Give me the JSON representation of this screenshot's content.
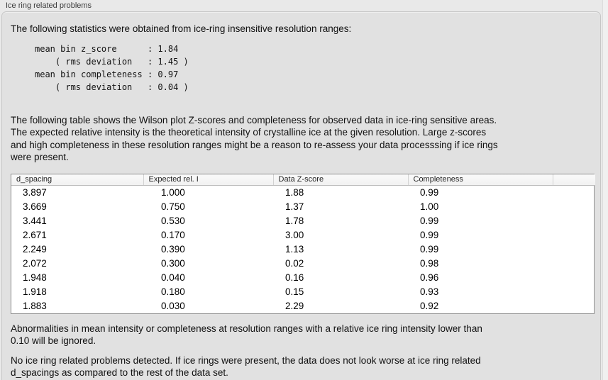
{
  "panel": {
    "title": "Ice ring related problems"
  },
  "intro": "The following statistics were obtained from ice-ring insensitive resolution ranges:",
  "stats_text": "mean bin z_score      : 1.84\n    ( rms deviation   : 1.45 )\nmean bin completeness : 0.97\n    ( rms deviation   : 0.04 )",
  "stats": {
    "mean_bin_z_score": 1.84,
    "z_score_rms_deviation": 1.45,
    "mean_bin_completeness": 0.97,
    "completeness_rms_deviation": 0.04
  },
  "table_description": "The following table shows the Wilson plot Z-scores and completeness for observed data in ice-ring sensitive areas.\nThe expected relative intensity is the theoretical intensity of crystalline ice at the given resolution. Large z-scores\nand high completeness in these resolution ranges might be a reason to re-assess your data processsing if ice rings\nwere present.",
  "table": {
    "columns": [
      "d_spacing",
      "Expected rel. I",
      "Data Z-score",
      "Completeness",
      ""
    ],
    "rows": [
      [
        "3.897",
        "1.000",
        "1.88",
        "0.99"
      ],
      [
        "3.669",
        "0.750",
        "1.37",
        "1.00"
      ],
      [
        "3.441",
        "0.530",
        "1.78",
        "0.99"
      ],
      [
        "2.671",
        "0.170",
        "3.00",
        "0.99"
      ],
      [
        "2.249",
        "0.390",
        "1.13",
        "0.99"
      ],
      [
        "2.072",
        "0.300",
        "0.02",
        "0.98"
      ],
      [
        "1.948",
        "0.040",
        "0.16",
        "0.96"
      ],
      [
        "1.918",
        "0.180",
        "0.15",
        "0.93"
      ],
      [
        "1.883",
        "0.030",
        "2.29",
        "0.92"
      ]
    ]
  },
  "notes": {
    "ignore_note": "Abnormalities in mean intensity or completeness at resolution ranges with a relative ice ring intensity lower than\n0.10 will be ignored.",
    "conclusion": "No ice ring related problems detected. If ice rings were present, the data does not look worse at ice ring related\nd_spacings as compared to the rest of the data set."
  },
  "colors": {
    "page_background": "#e9e9e9",
    "groupbox_background": "#e1e1e1",
    "groupbox_border": "#c6c6c6",
    "table_border": "#8f8f8f",
    "table_header_background": "#f5f5f5",
    "text": "#111111"
  }
}
